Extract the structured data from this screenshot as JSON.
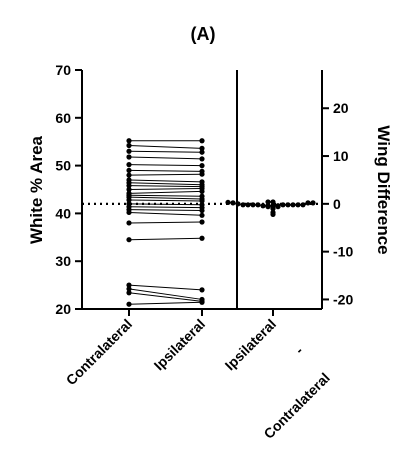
{
  "chart_data": {
    "type": "scatter",
    "title": "(A)",
    "ylabel_left": "White % Area",
    "ylabel_right": "Wing Difference",
    "ylim_left": [
      20,
      70
    ],
    "yticks_left": [
      20,
      30,
      40,
      50,
      60,
      70
    ],
    "ylim_right": [
      -22,
      28
    ],
    "yticks_right": [
      -20,
      -10,
      0,
      10,
      20
    ],
    "categories": [
      "Contralateral",
      "Ipsilateral",
      "Ipsilateral\n-\nContralateral"
    ],
    "category_label_lines": [
      [
        "Contralateral"
      ],
      [
        "Ipsilateral"
      ],
      [
        "Ipsilateral",
        "-",
        "Contralateral"
      ]
    ],
    "paired": {
      "contralateral": [
        55.2,
        54.2,
        53.0,
        51.8,
        50.2,
        49.0,
        48.0,
        47.0,
        46.4,
        45.8,
        45.0,
        44.2,
        43.8,
        43.4,
        42.8,
        42.0,
        41.4,
        40.8,
        40.2,
        38.0,
        34.5,
        25.0,
        24.2,
        23.4,
        21.0
      ],
      "ipsilateral": [
        55.2,
        53.6,
        52.8,
        51.4,
        50.0,
        48.8,
        48.2,
        46.6,
        46.0,
        45.6,
        45.2,
        44.6,
        43.6,
        43.0,
        42.6,
        41.8,
        41.2,
        40.6,
        39.6,
        38.2,
        34.8,
        24.0,
        22.0,
        21.6,
        21.4
      ]
    },
    "reference_line": {
      "y_right": 0,
      "style": "dotted"
    }
  }
}
